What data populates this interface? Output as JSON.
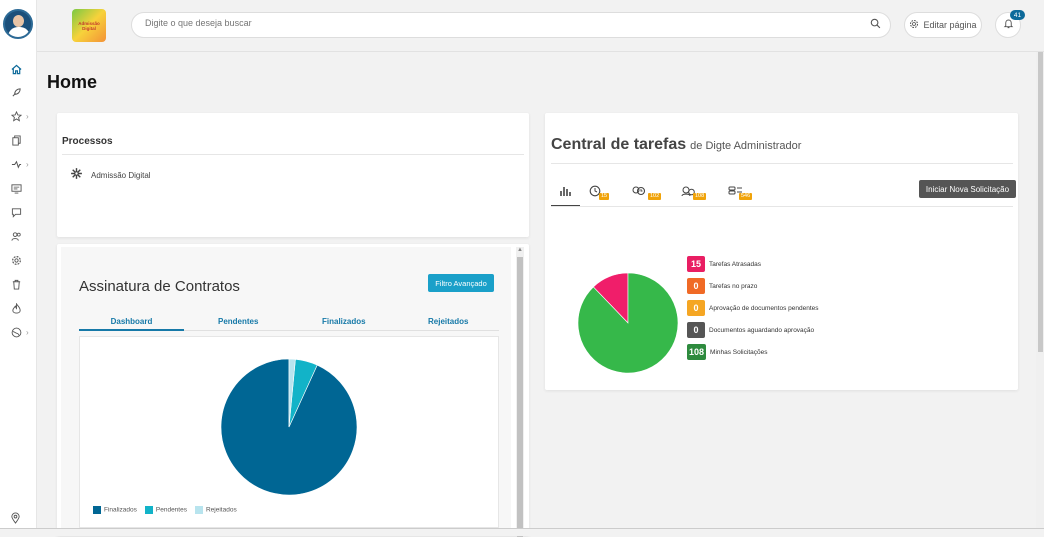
{
  "topbar": {
    "logo_text": "Admissão Digital",
    "search_placeholder": "Digite o que deseja buscar",
    "edit_label": "Editar página",
    "notifications_count": "41"
  },
  "sidebar": {
    "items": [
      {
        "icon": "home-icon",
        "active": true
      },
      {
        "icon": "rocket-icon"
      },
      {
        "icon": "star-icon",
        "chevron": true
      },
      {
        "icon": "documents-icon"
      },
      {
        "icon": "flow-icon",
        "chevron": true
      },
      {
        "icon": "monitor-icon"
      },
      {
        "icon": "chat-icon"
      },
      {
        "icon": "users-icon"
      },
      {
        "icon": "gear-icon"
      },
      {
        "icon": "trash-icon"
      },
      {
        "icon": "fire-icon"
      },
      {
        "icon": "globe-icon",
        "chevron": true
      }
    ]
  },
  "page": {
    "title": "Home"
  },
  "processos": {
    "title": "Processos",
    "items": [
      {
        "label": "Admissão Digital"
      }
    ]
  },
  "assinatura": {
    "title": "Assinatura de Contratos",
    "filter_button": "Filtro Avançado",
    "tabs": [
      "Dashboard",
      "Pendentes",
      "Finalizados",
      "Rejeitados"
    ],
    "legend": [
      "Finalizados",
      "Pendentes",
      "Rejeitados"
    ]
  },
  "central": {
    "title": "Central de tarefas",
    "subtitle": "de Digte Administrador",
    "tab_counts": [
      "15",
      "102",
      "108",
      "546"
    ],
    "new_request_button": "Iniciar Nova Solicitação",
    "stats": [
      {
        "value": "15",
        "label": "Tarefas Atrasadas",
        "color": "#e91e63"
      },
      {
        "value": "0",
        "label": "Tarefas no prazo",
        "color": "#f06a26"
      },
      {
        "value": "0",
        "label": "Aprovação de documentos pendentes",
        "color": "#f5a623"
      },
      {
        "value": "0",
        "label": "Documentos aguardando aprovação",
        "color": "#555555"
      },
      {
        "value": "108",
        "label": "Minhas Solicitações",
        "color": "#2e8b3e"
      }
    ]
  },
  "chart_data": [
    {
      "type": "pie",
      "title": "",
      "categories": [
        "Finalizados",
        "Pendentes",
        "Rejeitados"
      ],
      "values": [
        0.932,
        0.053,
        0.015
      ],
      "colors": [
        "#006694",
        "#12b3c8",
        "#b8e4ee"
      ]
    },
    {
      "type": "pie",
      "title": "",
      "categories": [
        "Tarefas Atrasadas",
        "Minhas Solicitações"
      ],
      "values": [
        15,
        108
      ],
      "colors": [
        "#f01e6a",
        "#36b84a"
      ]
    }
  ]
}
